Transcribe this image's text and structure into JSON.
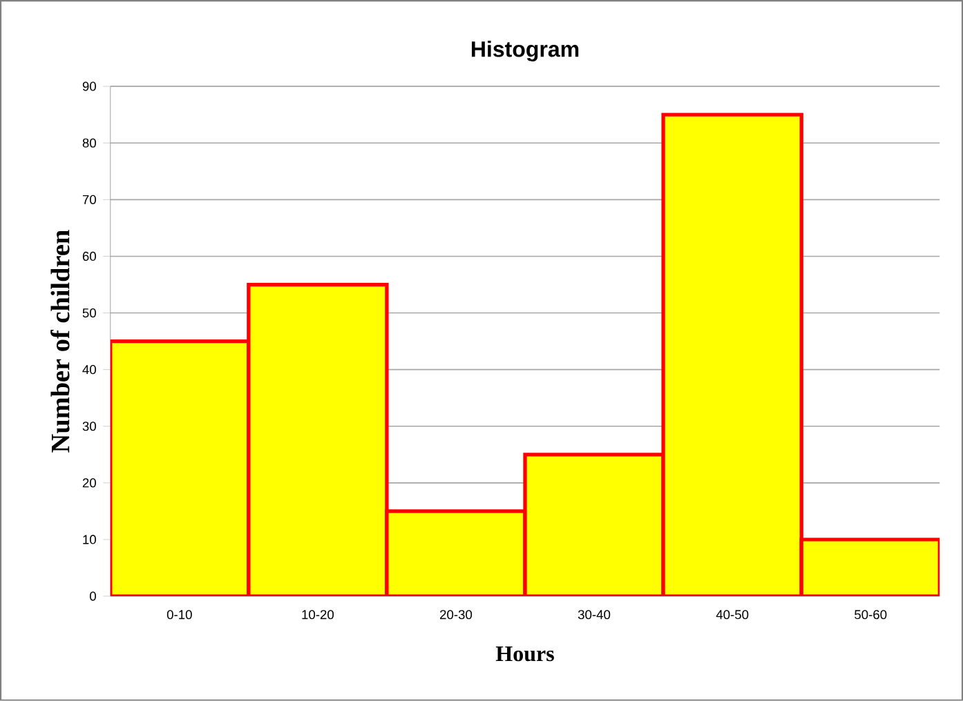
{
  "chart_data": {
    "type": "bar",
    "title": "Histogram",
    "xlabel": "Hours",
    "ylabel": "Number of children",
    "categories": [
      "0-10",
      "10-20",
      "20-30",
      "30-40",
      "40-50",
      "50-60"
    ],
    "values": [
      45,
      55,
      15,
      25,
      85,
      10
    ],
    "color": "#ffff00",
    "ylim": [
      0,
      90
    ],
    "yticks": [
      0,
      10,
      20,
      30,
      40,
      50,
      60,
      70,
      80,
      90
    ],
    "grid": "y"
  }
}
